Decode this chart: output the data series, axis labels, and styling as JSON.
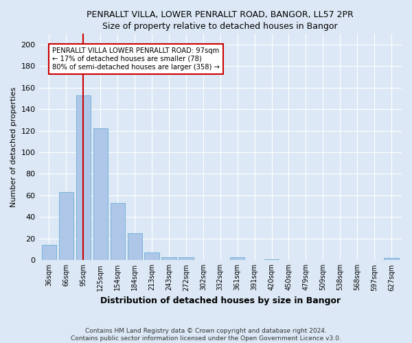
{
  "title": "PENRALLT VILLA, LOWER PENRALLT ROAD, BANGOR, LL57 2PR",
  "subtitle": "Size of property relative to detached houses in Bangor",
  "xlabel": "Distribution of detached houses by size in Bangor",
  "ylabel": "Number of detached properties",
  "bar_labels": [
    "36sqm",
    "66sqm",
    "95sqm",
    "125sqm",
    "154sqm",
    "184sqm",
    "213sqm",
    "243sqm",
    "272sqm",
    "302sqm",
    "332sqm",
    "361sqm",
    "391sqm",
    "420sqm",
    "450sqm",
    "479sqm",
    "509sqm",
    "538sqm",
    "568sqm",
    "597sqm",
    "627sqm"
  ],
  "bar_values": [
    14,
    63,
    153,
    122,
    53,
    25,
    7,
    3,
    3,
    0,
    0,
    3,
    0,
    1,
    0,
    0,
    0,
    0,
    0,
    0,
    2
  ],
  "bar_color": "#aec6e8",
  "bar_edge_color": "#6baed6",
  "vline_x": 2,
  "vline_color": "#cc0000",
  "annotation_text": "PENRALLT VILLA LOWER PENRALLT ROAD: 97sqm\n← 17% of detached houses are smaller (78)\n80% of semi-detached houses are larger (358) →",
  "annotation_box_color": "#ffffff",
  "annotation_box_edge": "#cc0000",
  "ylim": [
    0,
    210
  ],
  "yticks": [
    0,
    20,
    40,
    60,
    80,
    100,
    120,
    140,
    160,
    180,
    200
  ],
  "background_color": "#dce8f5",
  "grid_color": "#ffffff",
  "footer": "Contains HM Land Registry data © Crown copyright and database right 2024.\nContains public sector information licensed under the Open Government Licence v3.0."
}
